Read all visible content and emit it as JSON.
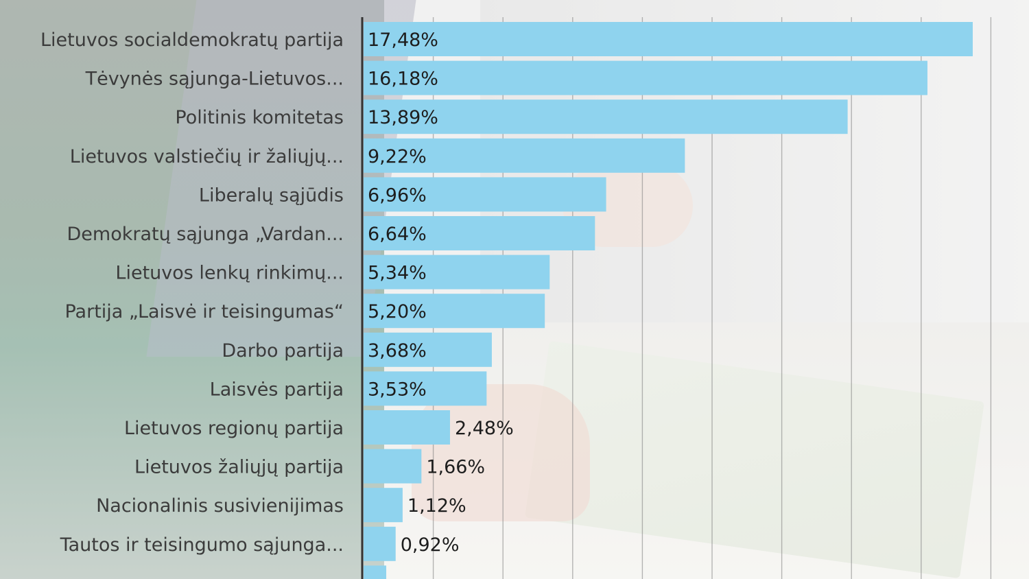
{
  "chart_data": {
    "type": "bar",
    "orientation": "horizontal",
    "categories": [
      "Lietuvos socialdemokratų partija",
      "Tėvynės sąjunga-Lietuvos...",
      "Politinis komitetas",
      "Lietuvos valstiečių ir žaliųjų...",
      "Liberalų sąjūdis",
      "Demokratų sąjunga „Vardan...",
      "Lietuvos lenkų rinkimų...",
      "Partija „Laisvė ir teisingumas“",
      "Darbo partija",
      "Laisvės partija",
      "Lietuvos regionų partija",
      "Lietuvos žaliųjų partija",
      "Nacionalinis susivienijimas",
      "Tautos ir teisingumo sąjunga...",
      ""
    ],
    "values": [
      17.48,
      16.18,
      13.89,
      9.22,
      6.96,
      6.64,
      5.34,
      5.2,
      3.68,
      3.53,
      2.48,
      1.66,
      1.12,
      0.92,
      0.65
    ],
    "value_labels": [
      "17,48%",
      "16,18%",
      "13,89%",
      "9,22%",
      "6,96%",
      "6,64%",
      "5,34%",
      "5,20%",
      "3,68%",
      "3,53%",
      "2,48%",
      "1,66%",
      "1,12%",
      "0,92%",
      ""
    ],
    "xlim": [
      0,
      18
    ],
    "grid": true,
    "bar_color": "#8fd3ee"
  }
}
